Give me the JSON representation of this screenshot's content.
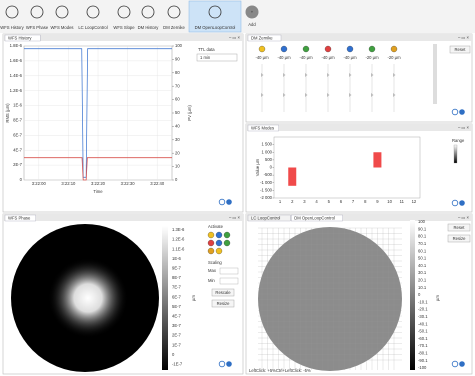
{
  "toolbar": {
    "items": [
      "WFS History",
      "WFS Phase",
      "WFS Modes",
      "LC LoopControl",
      "WFS Slope",
      "DM History",
      "DM Zernike",
      "DM OpenLoopControl"
    ],
    "add": "Add"
  },
  "wfs_history": {
    "tab": "WFS History",
    "ttl_label": "TTL data",
    "ttl_value": "1 min",
    "y_label": "RMS (µm)",
    "y2_label": "PV (µm)",
    "x_label": "Time",
    "xlim": [
      -5,
      45
    ],
    "xticks": [
      {
        "value": 0,
        "label": "3:22:00"
      },
      {
        "value": 10,
        "label": "3:22:10"
      },
      {
        "value": 20,
        "label": "3:22:20"
      },
      {
        "value": 30,
        "label": "3:22:30"
      },
      {
        "value": 40,
        "label": "3:22:40"
      }
    ],
    "ylim": [
      0,
      1.8e-06
    ],
    "yticks": [
      {
        "value": 0,
        "label": "0"
      },
      {
        "value": 2e-07,
        "label": "2E-7"
      },
      {
        "value": 4e-07,
        "label": "4E-7"
      },
      {
        "value": 6e-07,
        "label": "6E-7"
      },
      {
        "value": 8e-07,
        "label": "8E-7"
      },
      {
        "value": 1e-06,
        "label": "1E-6"
      },
      {
        "value": 1.2e-06,
        "label": "1.2E-6"
      },
      {
        "value": 1.4e-06,
        "label": "1.4E-6"
      },
      {
        "value": 1.6e-06,
        "label": "1.6E-6"
      },
      {
        "value": 1.8e-06,
        "label": "1.8E-6"
      }
    ],
    "y2lim": [
      0,
      100
    ],
    "y2ticks": [
      0,
      10,
      20,
      30,
      40,
      50,
      60,
      70,
      80,
      90,
      100
    ],
    "series": [
      {
        "color": "#4a7fd4",
        "axis": "y2",
        "x": [
          -5,
          14.5,
          15,
          16,
          16.5,
          45
        ],
        "y": [
          98,
          98,
          2,
          2,
          98,
          98
        ]
      },
      {
        "color": "#d9534f",
        "axis": "y",
        "x": [
          -5,
          14.6,
          15,
          16,
          16.4,
          45
        ],
        "y": [
          3e-07,
          3e-07,
          0,
          0,
          3e-07,
          3e-07
        ]
      }
    ]
  },
  "dm_zernike": {
    "tab": "DM Zernike",
    "reset": "Reset",
    "labels": [
      "-40 µm",
      "-40 µm",
      "-40 µm",
      "-40 µm",
      "-40 µm",
      "-20 µm",
      "-20 µm"
    ]
  },
  "wfs_modes": {
    "tab": "WFS Modes",
    "y_label": "Value µm",
    "range_label": "Range",
    "color": "#f04a4a",
    "categories": [
      1,
      2,
      3,
      4,
      5,
      6,
      7,
      8,
      9,
      10,
      11,
      12
    ],
    "values": [
      0,
      -1200,
      0,
      0,
      0,
      0,
      0,
      0,
      1000,
      0,
      0,
      0
    ],
    "ylim": [
      -2000,
      2000
    ],
    "yticks": [
      {
        "value": 1500,
        "label": "1 500"
      },
      {
        "value": 1000,
        "label": "1 000"
      },
      {
        "value": 500,
        "label": "500"
      },
      0,
      {
        "value": -500,
        "label": "-500"
      },
      {
        "value": -1000,
        "label": "-1 000"
      },
      {
        "value": -1500,
        "label": "-1 500"
      },
      {
        "value": -2000,
        "label": "-2 000"
      }
    ]
  },
  "wfs_phase": {
    "tab": "WFS Phase",
    "activate": "Activate",
    "scaling": "Scaling",
    "max": "Max",
    "min": "Min",
    "rescale": "Rescale",
    "resize": "Resize",
    "scale_labels": [
      "1.3E-6",
      "1.2E-6",
      "1.1E-6",
      "1E-6",
      "9E-7",
      "8E-7",
      "7E-7",
      "6E-7",
      "5E-7",
      "4E-7",
      "3E-7",
      "2E-7",
      "1E-7",
      "0",
      "-1E-7"
    ],
    "scale_title": "µm"
  },
  "dm_open": {
    "tabs": [
      "LC LoopControl",
      "DM OpenLoopControl"
    ],
    "reset": "Reset",
    "resize": "Resize",
    "scale_title": "µm",
    "scale_labels": [
      "100",
      "90.1",
      "80.1",
      "70.1",
      "60.1",
      "50.1",
      "40.1",
      "30.1",
      "20.1",
      "10.1",
      "0",
      "-10.1",
      "-20.1",
      "-30.1",
      "-40.1",
      "-50.1",
      "-60.1",
      "-70.1",
      "-80.1",
      "-90.1",
      "-100"
    ],
    "status": "LeftClick: +5%Ctrl+LeftClick: -5%"
  }
}
